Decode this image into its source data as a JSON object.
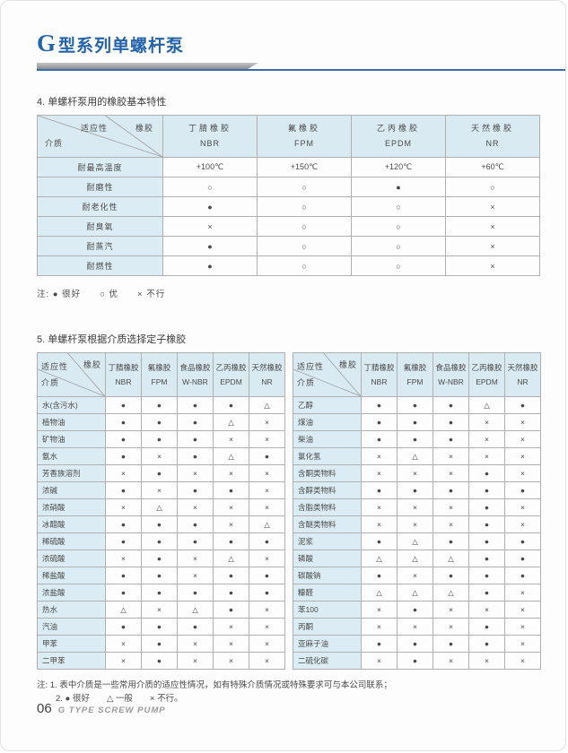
{
  "page": {
    "title_g": "G",
    "title_rest": "型系列单螺杆泵",
    "footer_page_num": "06",
    "footer_text": "G TYPE SCREW PUMP"
  },
  "section4": {
    "heading": "4. 单螺杆泵用的橡胶基本特性",
    "corner": {
      "top": "适应性",
      "right": "橡胶",
      "bottom": "介质"
    },
    "columns": [
      {
        "name": "丁腈橡胶",
        "code": "NBR"
      },
      {
        "name": "氟橡胶",
        "code": "FPM"
      },
      {
        "name": "乙丙橡胶",
        "code": "EPDM"
      },
      {
        "name": "天然橡胶",
        "code": "NR"
      }
    ],
    "rows": [
      {
        "label": "耐最高温度",
        "values": [
          "+100℃",
          "+150℃",
          "+120℃",
          "+60℃"
        ]
      },
      {
        "label": "耐磨性",
        "values": [
          "○",
          "○",
          "●",
          "○"
        ]
      },
      {
        "label": "耐老化性",
        "values": [
          "●",
          "○",
          "○",
          "×"
        ]
      },
      {
        "label": "耐臭氧",
        "values": [
          "×",
          "○",
          "○",
          "×"
        ]
      },
      {
        "label": "耐蒸汽",
        "values": [
          "●",
          "○",
          "○",
          "×"
        ]
      },
      {
        "label": "耐燃性",
        "values": [
          "●",
          "○",
          "○",
          "×"
        ]
      }
    ],
    "note": "注: ● 很好　　○ 优　　× 不行"
  },
  "section5": {
    "heading": "5. 单螺杆泵根据介质选择定子橡胶",
    "corner": {
      "top": "适应性",
      "right": "橡胶",
      "bottom": "介质"
    },
    "columns": [
      {
        "name": "丁腈橡胶",
        "code": "NBR"
      },
      {
        "name": "氟橡胶",
        "code": "FPM"
      },
      {
        "name": "食品橡胶",
        "code": "W-NBR"
      },
      {
        "name": "乙丙橡胶",
        "code": "EPDM"
      },
      {
        "name": "天然橡胶",
        "code": "NR"
      }
    ],
    "left_rows": [
      {
        "label": "水(含污水)",
        "values": [
          "●",
          "●",
          "●",
          "●",
          "△"
        ]
      },
      {
        "label": "植物油",
        "values": [
          "●",
          "●",
          "●",
          "△",
          "×"
        ]
      },
      {
        "label": "矿物油",
        "values": [
          "●",
          "●",
          "●",
          "×",
          "×"
        ]
      },
      {
        "label": "氨水",
        "values": [
          "●",
          "×",
          "●",
          "△",
          "●"
        ]
      },
      {
        "label": "芳香族溶剂",
        "values": [
          "×",
          "●",
          "×",
          "×",
          "×"
        ]
      },
      {
        "label": "浓碱",
        "values": [
          "●",
          "×",
          "●",
          "●",
          "×"
        ]
      },
      {
        "label": "浓硝酸",
        "values": [
          "×",
          "△",
          "×",
          "×",
          "×"
        ]
      },
      {
        "label": "冰醋酸",
        "values": [
          "●",
          "●",
          "●",
          "×",
          "△"
        ]
      },
      {
        "label": "稀硫酸",
        "values": [
          "●",
          "●",
          "●",
          "●",
          "●"
        ]
      },
      {
        "label": "浓硫酸",
        "values": [
          "×",
          "●",
          "×",
          "△",
          "×"
        ]
      },
      {
        "label": "稀盐酸",
        "values": [
          "●",
          "●",
          "×",
          "●",
          "●"
        ]
      },
      {
        "label": "浓盐酸",
        "values": [
          "●",
          "●",
          "●",
          "●",
          "●"
        ]
      },
      {
        "label": "热水",
        "values": [
          "△",
          "×",
          "△",
          "●",
          "×"
        ]
      },
      {
        "label": "汽油",
        "values": [
          "●",
          "●",
          "●",
          "×",
          "×"
        ]
      },
      {
        "label": "甲苯",
        "values": [
          "×",
          "●",
          "×",
          "×",
          "×"
        ]
      },
      {
        "label": "二甲苯",
        "values": [
          "×",
          "●",
          "×",
          "×",
          "×"
        ]
      }
    ],
    "right_rows": [
      {
        "label": "乙醇",
        "values": [
          "●",
          "●",
          "●",
          "△",
          "●"
        ]
      },
      {
        "label": "煤油",
        "values": [
          "●",
          "●",
          "●",
          "×",
          "×"
        ]
      },
      {
        "label": "柴油",
        "values": [
          "●",
          "●",
          "●",
          "×",
          "×"
        ]
      },
      {
        "label": "氯化氢",
        "values": [
          "×",
          "△",
          "×",
          "×",
          "×"
        ]
      },
      {
        "label": "含酮类物料",
        "values": [
          "×",
          "×",
          "×",
          "●",
          "×"
        ]
      },
      {
        "label": "含醇类物料",
        "values": [
          "●",
          "●",
          "●",
          "●",
          "●"
        ]
      },
      {
        "label": "含脂类物料",
        "values": [
          "×",
          "×",
          "×",
          "●",
          "×"
        ]
      },
      {
        "label": "含醚类物料",
        "values": [
          "×",
          "×",
          "×",
          "●",
          "×"
        ]
      },
      {
        "label": "泥浆",
        "values": [
          "●",
          "△",
          "●",
          "●",
          "●"
        ]
      },
      {
        "label": "磷酸",
        "values": [
          "△",
          "△",
          "△",
          "●",
          "●"
        ]
      },
      {
        "label": "碳酸钠",
        "values": [
          "●",
          "×",
          "●",
          "●",
          "●"
        ]
      },
      {
        "label": "糠醛",
        "values": [
          "△",
          "△",
          "△",
          "●",
          "×"
        ]
      },
      {
        "label": "苯100",
        "values": [
          "×",
          "●",
          "×",
          "×",
          "×"
        ]
      },
      {
        "label": "丙酮",
        "values": [
          "×",
          "×",
          "×",
          "●",
          "×"
        ]
      },
      {
        "label": "亚麻子油",
        "values": [
          "●",
          "●",
          "●",
          "●",
          "×"
        ]
      },
      {
        "label": "二硫化碳",
        "values": [
          "×",
          "●",
          "×",
          "×",
          "×"
        ]
      }
    ],
    "note_line1": "注: 1. 表中介质是一些常用介质的适应性情况，如有特殊介质情况或特殊要求可与本公司联系；",
    "note_line2": "2. ● 很好　　△ 一般　　× 不行。"
  },
  "colors": {
    "accent_blue": "#2563a8",
    "rule_blue": "#3a6cb0",
    "cell_blue": "#d9eaf3"
  }
}
